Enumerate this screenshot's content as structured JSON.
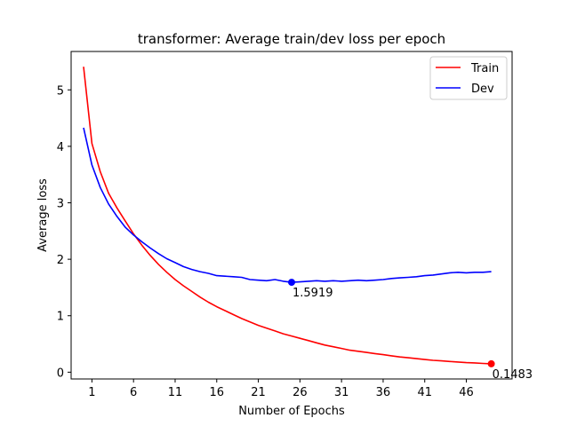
{
  "chart_data": {
    "type": "line",
    "title": "transformer: Average train/dev loss per epoch",
    "xlabel": "Number of Epochs",
    "ylabel": "Average loss",
    "xlim": [
      -1.5,
      51.5
    ],
    "ylim": [
      -0.12,
      5.68
    ],
    "xticks": [
      1,
      6,
      11,
      16,
      21,
      26,
      31,
      36,
      41,
      46
    ],
    "yticks": [
      0,
      1,
      2,
      3,
      4,
      5
    ],
    "grid": false,
    "legend_position": "top-right",
    "x": [
      0,
      1,
      2,
      3,
      4,
      5,
      6,
      7,
      8,
      9,
      10,
      11,
      12,
      13,
      14,
      15,
      16,
      17,
      18,
      19,
      20,
      21,
      22,
      23,
      24,
      25,
      26,
      27,
      28,
      29,
      30,
      31,
      32,
      33,
      34,
      35,
      36,
      37,
      38,
      39,
      40,
      41,
      42,
      43,
      44,
      45,
      46,
      47,
      48,
      49
    ],
    "series": [
      {
        "name": "Train",
        "color": "#ff0000",
        "values": [
          5.41,
          4.05,
          3.55,
          3.17,
          2.91,
          2.68,
          2.45,
          2.25,
          2.07,
          1.91,
          1.77,
          1.64,
          1.53,
          1.43,
          1.33,
          1.24,
          1.16,
          1.09,
          1.02,
          0.95,
          0.89,
          0.83,
          0.78,
          0.73,
          0.68,
          0.64,
          0.6,
          0.56,
          0.52,
          0.48,
          0.45,
          0.42,
          0.39,
          0.37,
          0.35,
          0.33,
          0.31,
          0.29,
          0.27,
          0.255,
          0.24,
          0.225,
          0.21,
          0.2,
          0.19,
          0.18,
          0.17,
          0.165,
          0.155,
          0.1483
        ]
      },
      {
        "name": "Dev",
        "color": "#0000ff",
        "values": [
          4.33,
          3.67,
          3.27,
          2.98,
          2.76,
          2.57,
          2.43,
          2.31,
          2.2,
          2.1,
          2.01,
          1.94,
          1.87,
          1.82,
          1.78,
          1.75,
          1.71,
          1.7,
          1.69,
          1.68,
          1.64,
          1.63,
          1.62,
          1.64,
          1.61,
          1.5919,
          1.6,
          1.61,
          1.62,
          1.61,
          1.62,
          1.61,
          1.62,
          1.63,
          1.62,
          1.63,
          1.64,
          1.66,
          1.67,
          1.68,
          1.69,
          1.71,
          1.72,
          1.74,
          1.76,
          1.77,
          1.76,
          1.77,
          1.77,
          1.78
        ]
      }
    ],
    "annotations": [
      {
        "series": "Dev",
        "x": 25,
        "y": 1.5919,
        "text": "1.5919"
      },
      {
        "series": "Train",
        "x": 49,
        "y": 0.1483,
        "text": "0.1483"
      }
    ]
  }
}
